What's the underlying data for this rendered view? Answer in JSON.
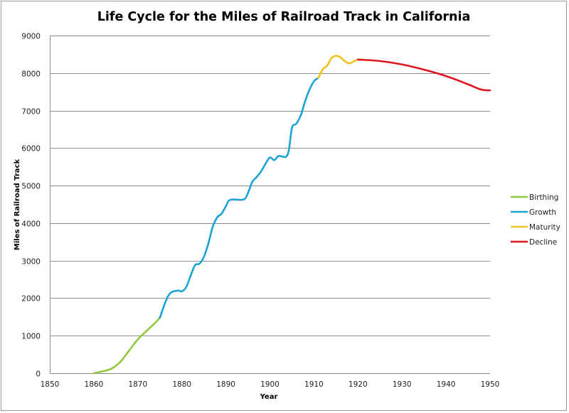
{
  "chart_data": {
    "type": "line",
    "title": "Life Cycle for the Miles of Railroad Track in California",
    "xlabel": "Year",
    "ylabel": "Miles of Railroad Track",
    "xlim": [
      1850,
      1950
    ],
    "ylim": [
      0,
      9000
    ],
    "x_ticks": [
      1850,
      1860,
      1870,
      1880,
      1890,
      1900,
      1910,
      1920,
      1930,
      1940,
      1950
    ],
    "y_ticks": [
      0,
      1000,
      2000,
      3000,
      4000,
      5000,
      6000,
      7000,
      8000,
      9000
    ],
    "x_tick_labels": [
      "1850",
      "1860",
      "1870",
      "1880",
      "1890",
      "1900",
      "1910",
      "1920",
      "1930",
      "1940",
      "1950"
    ],
    "y_tick_labels": [
      "0",
      "1000",
      "2000",
      "3000",
      "4000",
      "5000",
      "6000",
      "7000",
      "8000",
      "9000"
    ],
    "grid": "horizontal",
    "legend_position": "right",
    "series": [
      {
        "name": "Birthing",
        "color": "#92c83e",
        "x": [
          1860,
          1862,
          1864,
          1866,
          1868,
          1870,
          1872,
          1874,
          1875
        ],
        "values": [
          0,
          50,
          120,
          300,
          600,
          900,
          1130,
          1350,
          1480
        ]
      },
      {
        "name": "Growth",
        "color": "#1aa3d4",
        "x": [
          1875,
          1877,
          1879,
          1880,
          1881,
          1882,
          1883,
          1884,
          1885,
          1886,
          1887,
          1888,
          1889,
          1890,
          1891,
          1894,
          1895,
          1896,
          1897,
          1898,
          1899,
          1900,
          1901,
          1902,
          1904,
          1905,
          1906,
          1907,
          1908,
          1909,
          1910,
          1911
        ],
        "values": [
          1480,
          2080,
          2200,
          2180,
          2300,
          2600,
          2880,
          2920,
          3100,
          3450,
          3900,
          4150,
          4250,
          4450,
          4620,
          4630,
          4800,
          5100,
          5230,
          5380,
          5580,
          5750,
          5680,
          5790,
          5820,
          6530,
          6650,
          6870,
          7250,
          7560,
          7780,
          7870
        ]
      },
      {
        "name": "Maturity",
        "color": "#f2c21a",
        "x": [
          1911,
          1912,
          1913,
          1914,
          1915,
          1916,
          1917,
          1918,
          1919,
          1920
        ],
        "values": [
          7870,
          8100,
          8200,
          8400,
          8460,
          8420,
          8320,
          8260,
          8310,
          8360
        ]
      },
      {
        "name": "Decline",
        "color": "#e0141e",
        "x": [
          1920,
          1925,
          1930,
          1935,
          1940,
          1945,
          1948,
          1950
        ],
        "values": [
          8360,
          8320,
          8230,
          8090,
          7920,
          7700,
          7560,
          7540
        ]
      }
    ]
  }
}
